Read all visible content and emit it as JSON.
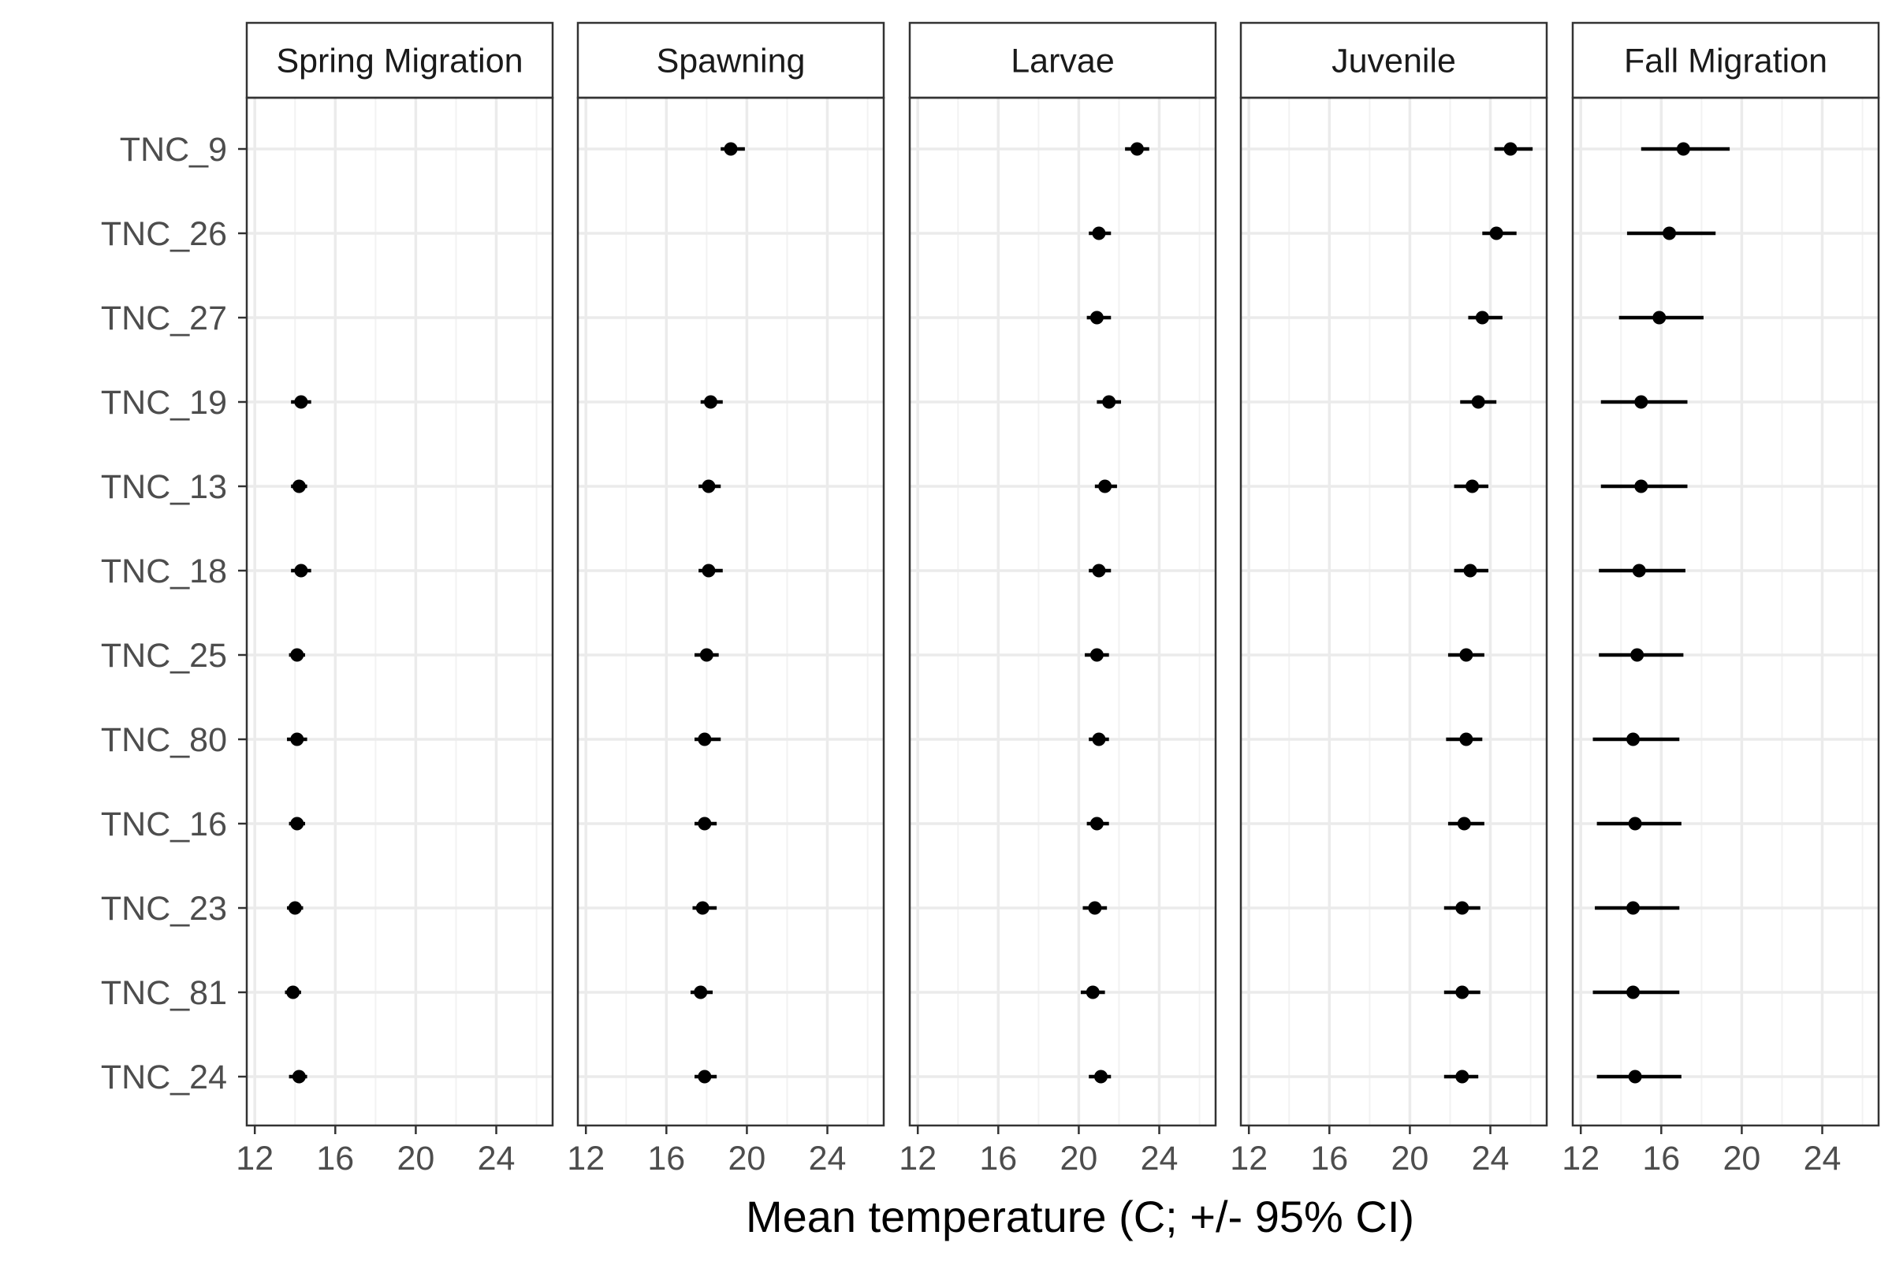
{
  "chart_data": {
    "type": "scatter",
    "subtype": "dot-and-whisker faceted",
    "xlabel": "Mean temperature (C; +/- 95% CI)",
    "xlim": [
      11.6,
      26.8
    ],
    "xticks": [
      12,
      16,
      20,
      24
    ],
    "xtick_labels": [
      "12",
      "16",
      "20",
      "24"
    ],
    "grid": true,
    "legend": "none",
    "sites": [
      "TNC_9",
      "TNC_26",
      "TNC_27",
      "TNC_19",
      "TNC_13",
      "TNC_18",
      "TNC_25",
      "TNC_80",
      "TNC_16",
      "TNC_23",
      "TNC_81",
      "TNC_24"
    ],
    "panels": [
      {
        "name": "Spring Migration",
        "mean": [
          null,
          null,
          null,
          14.3,
          14.2,
          14.3,
          14.1,
          14.1,
          14.1,
          14.0,
          13.9,
          14.2
        ],
        "lower": [
          null,
          null,
          null,
          13.8,
          13.8,
          13.8,
          13.7,
          13.6,
          13.7,
          13.6,
          13.5,
          13.7
        ],
        "upper": [
          null,
          null,
          null,
          14.8,
          14.6,
          14.8,
          14.5,
          14.6,
          14.5,
          14.4,
          14.3,
          14.6
        ]
      },
      {
        "name": "Spawning",
        "mean": [
          19.2,
          null,
          null,
          18.2,
          18.1,
          18.1,
          18.0,
          17.9,
          17.9,
          17.8,
          17.7,
          17.9
        ],
        "lower": [
          18.7,
          null,
          null,
          17.7,
          17.6,
          17.6,
          17.4,
          17.4,
          17.4,
          17.3,
          17.2,
          17.4
        ],
        "upper": [
          19.9,
          null,
          null,
          18.8,
          18.7,
          18.8,
          18.6,
          18.7,
          18.5,
          18.5,
          18.3,
          18.5
        ]
      },
      {
        "name": "Larvae",
        "mean": [
          22.9,
          21.0,
          20.9,
          21.5,
          21.3,
          21.0,
          20.9,
          21.0,
          20.9,
          20.8,
          20.7,
          21.1
        ],
        "lower": [
          22.3,
          20.5,
          20.4,
          20.9,
          20.8,
          20.5,
          20.3,
          20.5,
          20.4,
          20.2,
          20.1,
          20.5
        ],
        "upper": [
          23.5,
          21.6,
          21.6,
          22.1,
          21.9,
          21.6,
          21.5,
          21.5,
          21.5,
          21.4,
          21.3,
          21.6
        ]
      },
      {
        "name": "Juvenile",
        "mean": [
          25.0,
          24.3,
          23.6,
          23.4,
          23.1,
          23.0,
          22.8,
          22.8,
          22.7,
          22.6,
          22.6,
          22.6
        ],
        "lower": [
          24.2,
          23.6,
          22.9,
          22.5,
          22.2,
          22.2,
          21.9,
          21.8,
          21.9,
          21.7,
          21.7,
          21.7
        ],
        "upper": [
          26.1,
          25.3,
          24.6,
          24.3,
          23.9,
          23.9,
          23.7,
          23.6,
          23.7,
          23.5,
          23.5,
          23.4
        ]
      },
      {
        "name": "Fall Migration",
        "mean": [
          17.1,
          16.4,
          15.9,
          15.0,
          15.0,
          14.9,
          14.8,
          14.6,
          14.7,
          14.6,
          14.6,
          14.7
        ],
        "lower": [
          15.0,
          14.3,
          13.9,
          13.0,
          13.0,
          12.9,
          12.9,
          12.6,
          12.8,
          12.7,
          12.6,
          12.8
        ],
        "upper": [
          19.4,
          18.7,
          18.1,
          17.3,
          17.3,
          17.2,
          17.1,
          16.9,
          17.0,
          16.9,
          16.9,
          17.0
        ]
      }
    ]
  }
}
